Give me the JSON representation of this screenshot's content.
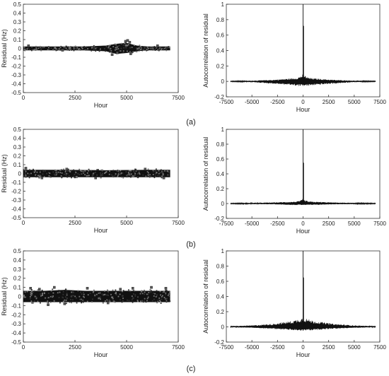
{
  "figure": {
    "panel_labels": [
      "(a)",
      "(b)",
      "(c)"
    ]
  },
  "chart_data": [
    {
      "type": "scatter",
      "panel": "(a)",
      "xlabel": "Hour",
      "ylabel": "Residual (Hz)",
      "xlim": [
        0,
        7500
      ],
      "ylim": [
        -0.5,
        0.5
      ],
      "xticks": [
        0,
        2500,
        5000,
        7500
      ],
      "yticks": [
        -0.5,
        -0.4,
        -0.3,
        -0.2,
        -0.1,
        0,
        0.1,
        0.2,
        0.3,
        0.4,
        0.5
      ],
      "ytick_labels": [
        "-0.5",
        "-0.4",
        "-0.3",
        "-0.2",
        "-0.1",
        "0",
        "0.1",
        "0.2",
        "0.3",
        "0.4",
        "0.5"
      ],
      "band": {
        "x": [
          0,
          1000,
          2000,
          3000,
          4000,
          4500,
          5000,
          5500,
          6000,
          7100
        ],
        "upper": [
          0.02,
          0.02,
          0.02,
          0.02,
          0.03,
          0.05,
          0.06,
          0.03,
          0.02,
          0.02
        ],
        "lower": [
          -0.02,
          -0.02,
          -0.02,
          -0.02,
          -0.03,
          -0.06,
          -0.05,
          -0.03,
          -0.02,
          -0.02
        ]
      },
      "outliers": [
        [
          250,
          0.03
        ],
        [
          1900,
          -0.02
        ],
        [
          4300,
          -0.07
        ],
        [
          4550,
          -0.05
        ],
        [
          4950,
          0.08
        ],
        [
          5050,
          0.09
        ],
        [
          5150,
          0.07
        ],
        [
          5200,
          -0.06
        ],
        [
          6500,
          0.03
        ]
      ]
    },
    {
      "type": "line",
      "panel": "(a)",
      "xlabel": "Hour",
      "ylabel": "Autocorrelation of residual",
      "xlim": [
        -7500,
        7500
      ],
      "ylim": [
        -0.2,
        1
      ],
      "xticks": [
        -7500,
        -5000,
        -2500,
        0,
        2500,
        5000,
        7500
      ],
      "yticks": [
        -0.2,
        0,
        0.2,
        0.4,
        0.6,
        0.8,
        1
      ],
      "ytick_labels": [
        "-0.2",
        "0",
        "0.2",
        "0.4",
        "0.6",
        "0.8",
        "1"
      ],
      "peak": 1,
      "secondary_peak": 0.72,
      "envelope": {
        "lag": [
          0,
          100,
          500,
          1000,
          2000,
          3000,
          5000,
          7000
        ],
        "pos": [
          0.1,
          0.08,
          0.05,
          0.04,
          0.03,
          0.02,
          0.01,
          0.005
        ],
        "neg": [
          -0.06,
          -0.06,
          -0.06,
          -0.05,
          -0.04,
          -0.03,
          -0.01,
          -0.005
        ]
      }
    },
    {
      "type": "scatter",
      "panel": "(b)",
      "xlabel": "Hour",
      "ylabel": "Residual (Hz)",
      "xlim": [
        0,
        7500
      ],
      "ylim": [
        -0.5,
        0.5
      ],
      "xticks": [
        0,
        2500,
        5000,
        7500
      ],
      "yticks": [
        -0.5,
        -0.4,
        -0.3,
        -0.2,
        -0.1,
        0,
        0.1,
        0.2,
        0.3,
        0.4,
        0.5
      ],
      "ytick_labels": [
        "-0.5",
        "-0.4",
        "-0.3",
        "-0.2",
        "-0.1",
        "0",
        "0.1",
        "0.2",
        "0.3",
        "0.4",
        "0.5"
      ],
      "band": {
        "x": [
          0,
          2000,
          4000,
          6000,
          7100
        ],
        "upper": [
          0.04,
          0.04,
          0.035,
          0.04,
          0.04
        ],
        "lower": [
          -0.04,
          -0.04,
          -0.04,
          -0.04,
          -0.04
        ]
      },
      "outliers": [
        [
          120,
          0.06
        ],
        [
          900,
          -0.05
        ],
        [
          2100,
          0.05
        ],
        [
          3500,
          -0.05
        ],
        [
          5900,
          0.05
        ],
        [
          6800,
          -0.05
        ]
      ]
    },
    {
      "type": "line",
      "panel": "(b)",
      "xlabel": "Hour",
      "ylabel": "Autocorrelation of residual",
      "xlim": [
        -7500,
        7500
      ],
      "ylim": [
        -0.2,
        1
      ],
      "xticks": [
        -7500,
        -5000,
        -2500,
        0,
        2500,
        5000,
        7500
      ],
      "yticks": [
        -0.2,
        0,
        0.2,
        0.4,
        0.6,
        0.8,
        1
      ],
      "ytick_labels": [
        "-0.2",
        "0",
        "0.2",
        "0.4",
        "0.6",
        "0.8",
        "1"
      ],
      "peak": 1,
      "secondary_peak": 0.55,
      "envelope": {
        "lag": [
          0,
          100,
          500,
          1000,
          2000,
          3000,
          5000,
          7000
        ],
        "pos": [
          0.07,
          0.05,
          0.03,
          0.025,
          0.02,
          0.015,
          0.01,
          0.005
        ],
        "neg": [
          -0.02,
          -0.02,
          -0.02,
          -0.02,
          -0.015,
          -0.01,
          -0.008,
          -0.005
        ]
      }
    },
    {
      "type": "scatter",
      "panel": "(c)",
      "xlabel": "Hour",
      "ylabel": "Residual (Hz)",
      "xlim": [
        0,
        7500
      ],
      "ylim": [
        -0.5,
        0.5
      ],
      "xticks": [
        0,
        2500,
        5000,
        7500
      ],
      "yticks": [
        -0.5,
        -0.4,
        -0.3,
        -0.2,
        -0.1,
        0,
        0.1,
        0.2,
        0.3,
        0.4,
        0.5
      ],
      "ytick_labels": [
        "-0.5",
        "-0.4",
        "-0.3",
        "-0.2",
        "-0.1",
        "0",
        "0.1",
        "0.2",
        "0.3",
        "0.4",
        "0.5"
      ],
      "band": {
        "x": [
          0,
          1000,
          2000,
          3000,
          4000,
          5000,
          6000,
          7100
        ],
        "upper": [
          0.06,
          0.06,
          0.07,
          0.06,
          0.06,
          0.06,
          0.06,
          0.06
        ],
        "lower": [
          -0.06,
          -0.06,
          -0.06,
          -0.06,
          -0.06,
          -0.06,
          -0.06,
          -0.06
        ]
      },
      "outliers": [
        [
          350,
          0.09
        ],
        [
          780,
          0.08
        ],
        [
          1500,
          0.1
        ],
        [
          2000,
          -0.08
        ],
        [
          3100,
          0.09
        ],
        [
          4100,
          -0.07
        ],
        [
          4700,
          0.08
        ],
        [
          5300,
          0.09
        ],
        [
          6200,
          0.1
        ],
        [
          6900,
          0.09
        ],
        [
          1200,
          -0.09
        ]
      ]
    },
    {
      "type": "line",
      "panel": "(c)",
      "xlabel": "Hour",
      "ylabel": "Autocorrelation of residual",
      "xlim": [
        -7500,
        7500
      ],
      "ylim": [
        -0.2,
        1
      ],
      "xticks": [
        -7500,
        -5000,
        -2500,
        0,
        2500,
        5000,
        7500
      ],
      "yticks": [
        -0.2,
        0,
        0.2,
        0.4,
        0.6,
        0.8,
        1
      ],
      "ytick_labels": [
        "-0.2",
        "0",
        "0.2",
        "0.4",
        "0.6",
        "0.8",
        "1"
      ],
      "peak": 1,
      "secondary_peak": 0.65,
      "envelope": {
        "lag": [
          0,
          100,
          500,
          1000,
          2000,
          3000,
          5000,
          7000
        ],
        "pos": [
          0.14,
          0.12,
          0.1,
          0.08,
          0.06,
          0.04,
          0.02,
          0.01
        ],
        "neg": [
          -0.05,
          -0.05,
          -0.05,
          -0.045,
          -0.035,
          -0.025,
          -0.012,
          -0.005
        ]
      }
    }
  ]
}
